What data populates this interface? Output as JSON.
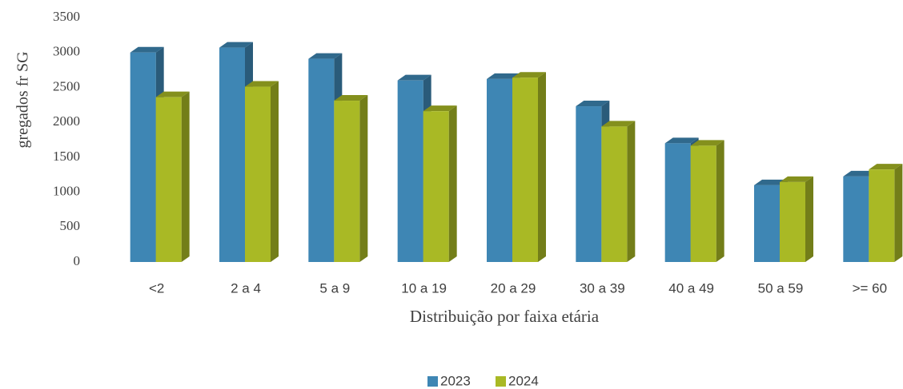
{
  "chart_data": {
    "type": "bar3d",
    "y_axis_label": "gregados fr SG",
    "x_axis_label": "Distribuição por faixa etária",
    "categories": [
      "<2",
      "2 a 4",
      "5 a 9",
      "10 a 19",
      "20 a 29",
      "30 a 39",
      "40 a 49",
      "50 a 59",
      ">= 60"
    ],
    "series": [
      {
        "name": "2023",
        "color": "#3e86b4",
        "values": [
          3000,
          3070,
          2910,
          2600,
          2620,
          2230,
          1700,
          1100,
          1225
        ]
      },
      {
        "name": "2024",
        "color": "#a9b925",
        "values": [
          2360,
          2510,
          2310,
          2160,
          2640,
          1940,
          1665,
          1145,
          1325
        ]
      }
    ],
    "ylim": [
      0,
      3500
    ],
    "yticks": [
      0,
      500,
      1000,
      1500,
      2000,
      2500,
      3000,
      3500
    ],
    "grid": false,
    "legend": "bottom"
  }
}
